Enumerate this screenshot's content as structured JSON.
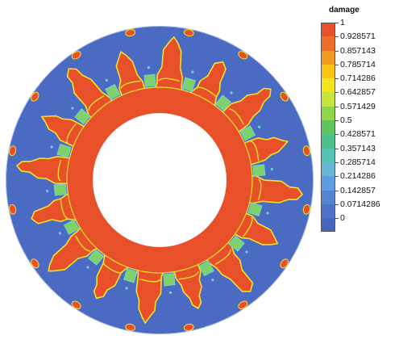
{
  "legend": {
    "title": "damage",
    "entries": [
      {
        "label": "1",
        "color": "#e8502a"
      },
      {
        "label": "0.928571",
        "color": "#ee6e28"
      },
      {
        "label": "0.857143",
        "color": "#f39a1e"
      },
      {
        "label": "0.785714",
        "color": "#f8c516"
      },
      {
        "label": "0.714286",
        "color": "#f3e51c"
      },
      {
        "label": "0.642857",
        "color": "#c9e43a"
      },
      {
        "label": "0.571429",
        "color": "#8fd44a"
      },
      {
        "label": "0.5",
        "color": "#5cc45a"
      },
      {
        "label": "0.428571",
        "color": "#4ec08a"
      },
      {
        "label": "0.357143",
        "color": "#55c2b4"
      },
      {
        "label": "0.285714",
        "color": "#66b8d6"
      },
      {
        "label": "0.214286",
        "color": "#5e9ee0"
      },
      {
        "label": "0.142857",
        "color": "#5584d4"
      },
      {
        "label": "0.0714286",
        "color": "#4f72c8"
      },
      {
        "label": "0",
        "color": "#4466bb"
      }
    ]
  },
  "colors": {
    "intact": "#4a6bc1",
    "damaged": "#e8502a",
    "transition_yellow": "#f0e32a",
    "transition_green": "#7fd16a",
    "transition_cyan": "#72cdd9",
    "hole": "#ffffff"
  },
  "ring": {
    "crack_count": 16
  }
}
